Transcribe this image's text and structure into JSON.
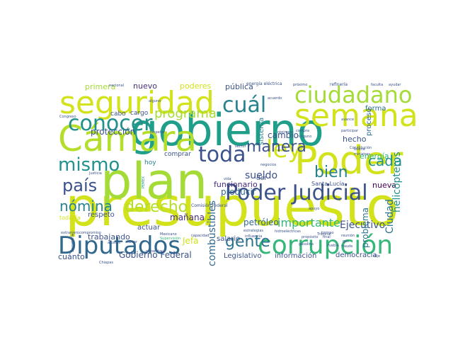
{
  "colors": {
    "background": "#ffffff",
    "palette": [
      "#d2e21b",
      "#a5db36",
      "#5ec962",
      "#35b779",
      "#2ab07f",
      "#1f9e89",
      "#21918c",
      "#26828e",
      "#2c728e",
      "#31688e",
      "#3b528b",
      "#472d7b",
      "#481a6c",
      "#440154"
    ]
  },
  "words": [
    {
      "text": "presupuesto",
      "weight": 100,
      "color": "#d2e21b"
    },
    {
      "text": "gobierno",
      "weight": 92,
      "color": "#1f9e89"
    },
    {
      "text": "plan",
      "weight": 90,
      "color": "#a5db36"
    },
    {
      "text": "Poder",
      "weight": 70,
      "color": "#d2e21b"
    },
    {
      "text": "Cámara",
      "weight": 68,
      "color": "#b5de2b"
    },
    {
      "text": "seguridad",
      "weight": 60,
      "color": "#d2e21b"
    },
    {
      "text": "semana",
      "weight": 58,
      "color": "#d2e21b"
    },
    {
      "text": "corrupción",
      "weight": 52,
      "color": "#35b779"
    },
    {
      "text": "Diputados",
      "weight": 50,
      "color": "#31688e"
    },
    {
      "text": "ciudadano",
      "weight": 44,
      "color": "#a5db36"
    },
    {
      "text": "Poder Judicial",
      "weight": 40,
      "color": "#3b528b"
    },
    {
      "text": "conocer",
      "weight": 38,
      "color": "#21918c"
    },
    {
      "text": "cuál",
      "weight": 36,
      "color": "#26828e"
    },
    {
      "text": "mismo",
      "weight": 34,
      "color": "#21918c"
    },
    {
      "text": "ley",
      "weight": 34,
      "color": "#d2e21b"
    },
    {
      "text": "toda",
      "weight": 32,
      "color": "#3b528b"
    },
    {
      "text": "derecho",
      "weight": 28,
      "color": "#b5de2b"
    },
    {
      "text": "país",
      "weight": 26,
      "color": "#3b528b"
    },
    {
      "text": "gente",
      "weight": 26,
      "color": "#2c728e"
    },
    {
      "text": "nómina",
      "weight": 24,
      "color": "#26828e"
    },
    {
      "text": "manera",
      "weight": 22,
      "color": "#3b528b"
    },
    {
      "text": "bien",
      "weight": 22,
      "color": "#26828e"
    },
    {
      "text": "cada",
      "weight": 20,
      "color": "#21918c"
    },
    {
      "text": "programa",
      "weight": 18,
      "color": "#a5db36"
    },
    {
      "text": "Ejecutivo",
      "weight": 16,
      "color": "#3b528b"
    },
    {
      "text": "combustibles",
      "weight": 16,
      "color": "#31688e"
    },
    {
      "text": "importante",
      "weight": 15,
      "color": "#35b779"
    },
    {
      "text": "nueva",
      "weight": 14,
      "color": "#440154"
    },
    {
      "text": "sueldo",
      "weight": 14,
      "color": "#3b528b"
    },
    {
      "text": "producir",
      "weight": 14,
      "color": "#31688e"
    },
    {
      "text": "Ciudad",
      "weight": 14,
      "color": "#2c728e"
    },
    {
      "text": "helicópteros",
      "weight": 14,
      "color": "#21918c"
    },
    {
      "text": "problema",
      "weight": 13,
      "color": "#2c728e"
    },
    {
      "text": "protección",
      "weight": 13,
      "color": "#3b528b"
    },
    {
      "text": "trabajando",
      "weight": 12,
      "color": "#3b528b"
    },
    {
      "text": "Gobierno Federal",
      "weight": 12,
      "color": "#3b528b"
    },
    {
      "text": "Jefa",
      "weight": 12,
      "color": "#d2e21b"
    },
    {
      "text": "mañana",
      "weight": 12,
      "color": "#472d7b"
    },
    {
      "text": "petróleo",
      "weight": 12,
      "color": "#31688e"
    },
    {
      "text": "cambio",
      "weight": 12,
      "color": "#3b528b"
    },
    {
      "text": "funcionario",
      "weight": 11,
      "color": "#472d7b"
    },
    {
      "text": "cuánto",
      "weight": 11,
      "color": "#3b528b"
    },
    {
      "text": "nuevo",
      "weight": 11,
      "color": "#472d7b"
    },
    {
      "text": "primera",
      "weight": 11,
      "color": "#a5db36"
    },
    {
      "text": "poderes",
      "weight": 11,
      "color": "#d2e21b"
    },
    {
      "text": "pública",
      "weight": 11,
      "color": "#3b528b"
    },
    {
      "text": "sistema",
      "weight": 11,
      "color": "#26828e"
    },
    {
      "text": "hecho",
      "weight": 11,
      "color": "#3b528b"
    },
    {
      "text": "proceso",
      "weight": 11,
      "color": "#31688e"
    },
    {
      "text": "forma",
      "weight": 11,
      "color": "#2c728e"
    },
    {
      "text": "energía",
      "weight": 11,
      "color": "#35b779"
    },
    {
      "text": "democracia",
      "weight": 10,
      "color": "#3b528b"
    },
    {
      "text": "información",
      "weight": 10,
      "color": "#3b528b"
    },
    {
      "text": "Legislativo",
      "weight": 10,
      "color": "#3b528b"
    },
    {
      "text": "salario",
      "weight": 10,
      "color": "#3b528b"
    },
    {
      "text": "actuar",
      "weight": 10,
      "color": "#3b528b"
    },
    {
      "text": "respeto",
      "weight": 10,
      "color": "#3b528b"
    },
    {
      "text": "comprar",
      "weight": 9,
      "color": "#3b528b"
    },
    {
      "text": "hoy",
      "weight": 9,
      "color": "#26828e"
    },
    {
      "text": "dar",
      "weight": 9,
      "color": "#3b528b"
    },
    {
      "text": "cabo",
      "weight": 9,
      "color": "#3b528b"
    },
    {
      "text": "cargo",
      "weight": 9,
      "color": "#3b528b"
    },
    {
      "text": "Santa Lucía",
      "weight": 8,
      "color": "#3b528b"
    },
    {
      "text": "todavía",
      "weight": 8,
      "color": "#d2e21b"
    },
    {
      "text": "Comisión Federal",
      "weight": 6,
      "color": "#3b528b"
    },
    {
      "text": "energía eléctrica",
      "weight": 6,
      "color": "#3b528b"
    },
    {
      "text": "refinería",
      "weight": 6,
      "color": "#3b528b"
    },
    {
      "text": "Chiapas",
      "weight": 5,
      "color": "#3b528b"
    },
    {
      "text": "Tribunal",
      "weight": 5,
      "color": "#3b528b"
    },
    {
      "text": "gas",
      "weight": 5,
      "color": "#3b528b"
    },
    {
      "text": "Puebla",
      "weight": 5,
      "color": "#3b528b"
    },
    {
      "text": "gasolina",
      "weight": 5,
      "color": "#3b528b"
    },
    {
      "text": "tiempo",
      "weight": 5,
      "color": "#3b528b"
    },
    {
      "text": "fraude",
      "weight": 5,
      "color": "#3b528b"
    },
    {
      "text": "Constitución",
      "weight": 5,
      "color": "#3b528b"
    },
    {
      "text": "PEMEX",
      "weight": 5,
      "color": "#21918c"
    },
    {
      "text": "ministros",
      "weight": 5,
      "color": "#3b528b"
    },
    {
      "text": "capacidad",
      "weight": 5,
      "color": "#3b528b"
    },
    {
      "text": "sector",
      "weight": 5,
      "color": "#3b528b"
    },
    {
      "text": "hidroeléctricas",
      "weight": 5,
      "color": "#3b528b"
    },
    {
      "text": "estrategias",
      "weight": 4,
      "color": "#3b528b"
    },
    {
      "text": "negocios",
      "weight": 4,
      "color": "#3b528b"
    },
    {
      "text": "reunión",
      "weight": 4,
      "color": "#3b528b"
    },
    {
      "text": "faculta",
      "weight": 4,
      "color": "#3b528b"
    },
    {
      "text": "ayudar",
      "weight": 4,
      "color": "#3b528b"
    },
    {
      "text": "próximo",
      "weight": 4,
      "color": "#3b528b"
    },
    {
      "text": "acuerdo",
      "weight": 4,
      "color": "#3b528b"
    },
    {
      "text": "régimen",
      "weight": 4,
      "color": "#3b528b"
    },
    {
      "text": "participar",
      "weight": 4,
      "color": "#3b528b"
    },
    {
      "text": "presentar",
      "weight": 4,
      "color": "#3b528b"
    },
    {
      "text": "nacional",
      "weight": 4,
      "color": "#3b528b"
    },
    {
      "text": "Mexicano",
      "weight": 4,
      "color": "#3b528b"
    },
    {
      "text": "Supervisión",
      "weight": 4,
      "color": "#35b779"
    },
    {
      "text": "respetar",
      "weight": 4,
      "color": "#3b528b"
    },
    {
      "text": "alguno",
      "weight": 4,
      "color": "#3b528b"
    },
    {
      "text": "buena",
      "weight": 4,
      "color": "#3b528b"
    },
    {
      "text": "propósito",
      "weight": 4,
      "color": "#3b528b"
    },
    {
      "text": "final",
      "weight": 4,
      "color": "#3b528b"
    },
    {
      "text": "apoyo",
      "weight": 4,
      "color": "#3b528b"
    },
    {
      "text": "vida",
      "weight": 4,
      "color": "#3b528b"
    },
    {
      "text": "avance",
      "weight": 4,
      "color": "#3b528b"
    },
    {
      "text": "compra",
      "weight": 4,
      "color": "#3b528b"
    },
    {
      "text": "ninguno",
      "weight": 4,
      "color": "#3b528b"
    },
    {
      "text": "Justicia",
      "weight": 4,
      "color": "#3b528b"
    },
    {
      "text": "extranjero",
      "weight": 4,
      "color": "#3b528b"
    },
    {
      "text": "compromiso",
      "weight": 4,
      "color": "#3b528b"
    },
    {
      "text": "Congreso",
      "weight": 4,
      "color": "#3b528b"
    },
    {
      "text": "Secretaría",
      "weight": 4,
      "color": "#3b528b"
    },
    {
      "text": "ajustes",
      "weight": 4,
      "color": "#3b528b"
    },
    {
      "text": "llevar",
      "weight": 4,
      "color": "#3b528b"
    },
    {
      "text": "influencia",
      "weight": 4,
      "color": "#3b528b"
    },
    {
      "text": "dije",
      "weight": 4,
      "color": "#3b528b"
    }
  ]
}
